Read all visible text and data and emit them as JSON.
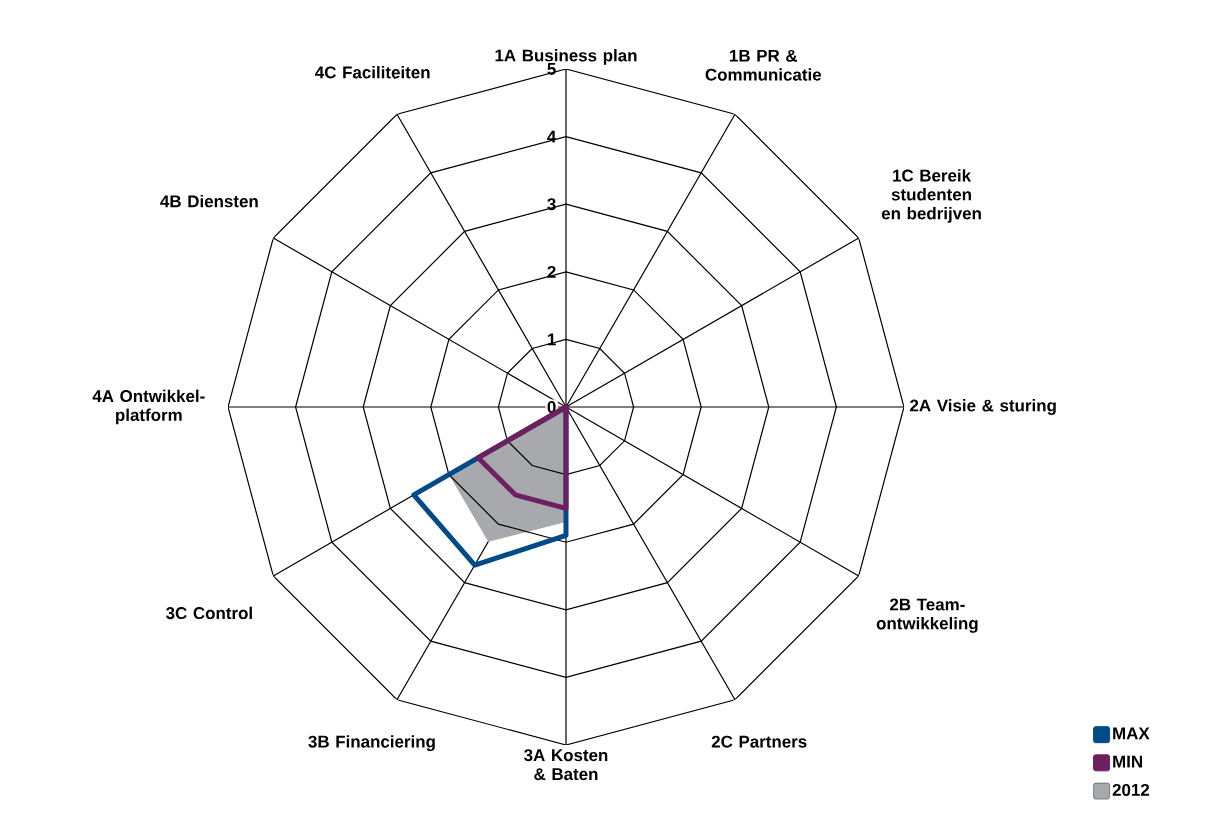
{
  "chart_data": {
    "type": "radar",
    "categories": [
      "1A Business plan",
      "1B PR & Communicatie",
      "1C Bereik studenten en bedrijven",
      "2A Visie & sturing",
      "2B Team-ontwikkeling",
      "2C Partners",
      "3A Kosten & Baten",
      "3B Financiering",
      "3C Control",
      "4A Ontwikkel-platform",
      "4B Diensten",
      "4C Faciliteiten"
    ],
    "series": [
      {
        "name": "2012",
        "type": "area",
        "color": "#a7a9ac",
        "values": [
          0,
          0,
          0,
          0,
          0,
          0,
          1.7,
          2.3,
          2.0,
          0,
          0,
          0
        ]
      },
      {
        "name": "MAX",
        "color": "#004b87",
        "values": [
          0,
          0,
          0,
          0,
          0,
          0,
          1.9,
          2.7,
          2.6,
          0,
          0,
          0
        ]
      },
      {
        "name": "MIN",
        "color": "#6d1f5f",
        "values": [
          0,
          0,
          0,
          0,
          0,
          0,
          1.5,
          1.5,
          1.5,
          0,
          0,
          0
        ]
      }
    ],
    "ylim": [
      0,
      5
    ],
    "yticks": [
      0,
      1,
      2,
      3,
      4,
      5
    ],
    "grid": true,
    "legend": "bottom right"
  }
}
